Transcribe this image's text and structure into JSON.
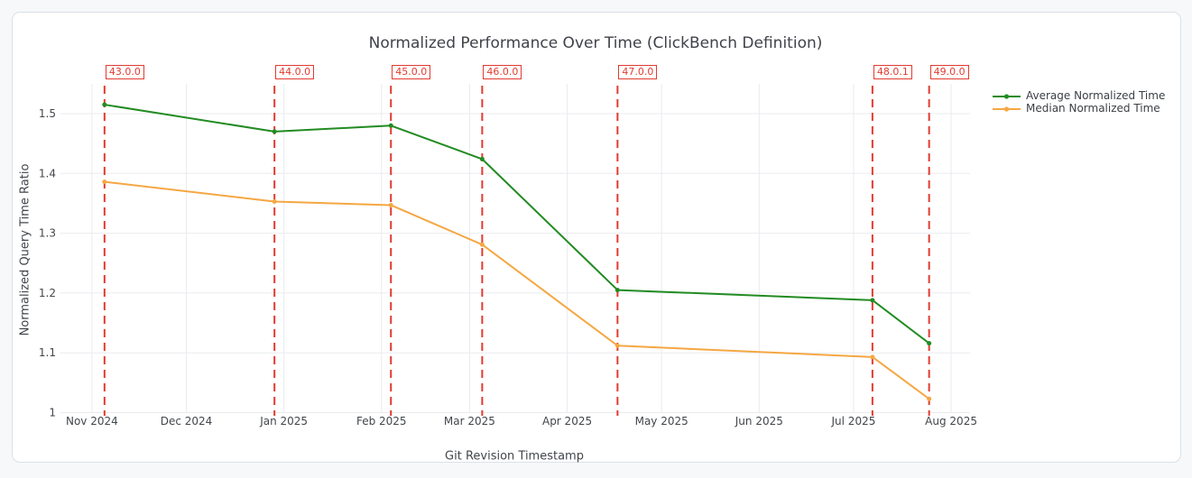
{
  "page": {
    "background_color": "#f6f8fa",
    "card_background": "#ffffff",
    "card_border_color": "#dbe1e7"
  },
  "chart_data": {
    "type": "line",
    "title": "Normalized Performance Over Time (ClickBench Definition)",
    "xlabel": "Git Revision Timestamp",
    "ylabel": "Normalized Query Time Ratio",
    "grid": true,
    "legend_position": "top-right-outside",
    "x_range": [
      "2024-10-22",
      "2025-08-07"
    ],
    "y_range": [
      0.996,
      1.549
    ],
    "x_ticks": [
      {
        "date": "2024-11-01",
        "label": "Nov 2024"
      },
      {
        "date": "2024-12-01",
        "label": "Dec 2024"
      },
      {
        "date": "2025-01-01",
        "label": "Jan 2025"
      },
      {
        "date": "2025-02-01",
        "label": "Feb 2025"
      },
      {
        "date": "2025-03-01",
        "label": "Mar 2025"
      },
      {
        "date": "2025-04-01",
        "label": "Apr 2025"
      },
      {
        "date": "2025-05-01",
        "label": "May 2025"
      },
      {
        "date": "2025-06-01",
        "label": "Jun 2025"
      },
      {
        "date": "2025-07-01",
        "label": "Jul 2025"
      },
      {
        "date": "2025-08-01",
        "label": "Aug 2025"
      }
    ],
    "y_ticks": [
      {
        "value": 1.0,
        "label": "1"
      },
      {
        "value": 1.1,
        "label": "1.1"
      },
      {
        "value": 1.2,
        "label": "1.2"
      },
      {
        "value": 1.3,
        "label": "1.3"
      },
      {
        "value": 1.4,
        "label": "1.4"
      },
      {
        "value": 1.5,
        "label": "1.5"
      }
    ],
    "x": [
      "2024-11-05",
      "2024-12-29",
      "2025-02-04",
      "2025-03-05",
      "2025-04-17",
      "2025-07-07",
      "2025-07-25"
    ],
    "releases": [
      {
        "label": "43.0.0",
        "date": "2024-11-05"
      },
      {
        "label": "44.0.0",
        "date": "2024-12-29"
      },
      {
        "label": "45.0.0",
        "date": "2025-02-04"
      },
      {
        "label": "46.0.0",
        "date": "2025-03-05"
      },
      {
        "label": "47.0.0",
        "date": "2025-04-17"
      },
      {
        "label": "48.0.1",
        "date": "2025-07-07"
      },
      {
        "label": "49.0.0",
        "date": "2025-07-25"
      }
    ],
    "series": [
      {
        "name": "Average Normalized Time",
        "color": "#228B22",
        "values": [
          1.515,
          1.47,
          1.48,
          1.424,
          1.205,
          1.188,
          1.116
        ]
      },
      {
        "name": "Median Normalized Time",
        "color": "#f5a742",
        "values": [
          1.386,
          1.353,
          1.347,
          1.281,
          1.112,
          1.093,
          1.023
        ]
      }
    ],
    "vline_color": "#e23b30",
    "grid_color": "#e9ebef",
    "tick_label_color": "#42464b"
  }
}
